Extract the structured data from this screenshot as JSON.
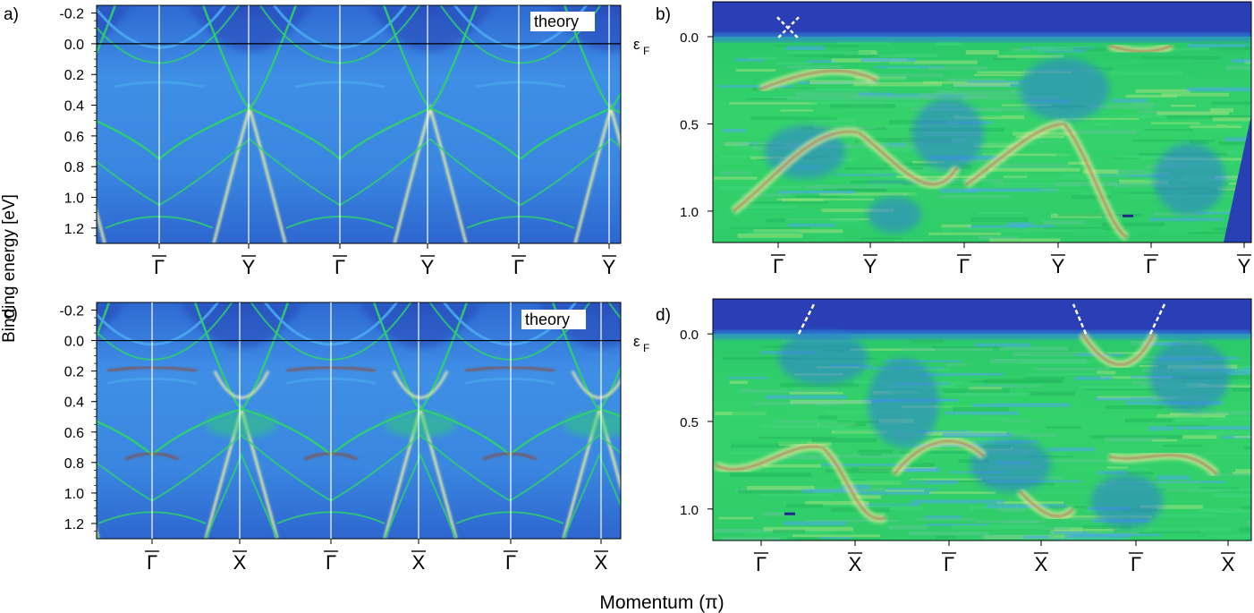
{
  "figure": {
    "ylabel": "Binding energy [eV]",
    "xlabel": "Momentum (π)",
    "ef_label": "ε",
    "ef_sub": "F"
  },
  "colors": {
    "deep": "#1f2a86",
    "blue": "#2f72d6",
    "sky": "#4aa7ee",
    "green": "#2fd26a",
    "yellow": "#f2f3a0",
    "brown": "#8b4b3e"
  },
  "chart_data": [
    {
      "panel": "a)",
      "type": "heatmap",
      "annotation": "theory",
      "xticks": [
        "Γ",
        "Y",
        "Γ",
        "Y",
        "Γ",
        "Y"
      ],
      "xtick_overline": true,
      "yticks": [
        "-0.2",
        "0.0",
        "0.2",
        "0.4",
        "0.6",
        "0.8",
        "1.0",
        "1.2"
      ],
      "ylim": [
        1.3,
        -0.25
      ],
      "fermi_line": 0.0
    },
    {
      "panel": "b)",
      "type": "heatmap",
      "xticks": [
        "Γ",
        "Y",
        "Γ",
        "Y",
        "Γ",
        "Y"
      ],
      "xtick_overline": true,
      "yticks": [
        "0.0",
        "0.5",
        "1.0"
      ],
      "ylim": [
        1.18,
        -0.2
      ]
    },
    {
      "panel": "c)",
      "type": "heatmap",
      "annotation": "theory",
      "xticks": [
        "Γ",
        "X",
        "Γ",
        "X",
        "Γ",
        "X"
      ],
      "xtick_overline": true,
      "yticks": [
        "-0.2",
        "0.0",
        "0.2",
        "0.4",
        "0.6",
        "0.8",
        "1.0",
        "1.2"
      ],
      "ylim": [
        1.3,
        -0.25
      ],
      "fermi_line": 0.0
    },
    {
      "panel": "d)",
      "type": "heatmap",
      "xticks": [
        "Γ",
        "X",
        "Γ",
        "X",
        "Γ",
        "X"
      ],
      "xtick_overline": true,
      "yticks": [
        "0.0",
        "0.5",
        "1.0"
      ],
      "ylim": [
        1.18,
        -0.2
      ]
    }
  ]
}
